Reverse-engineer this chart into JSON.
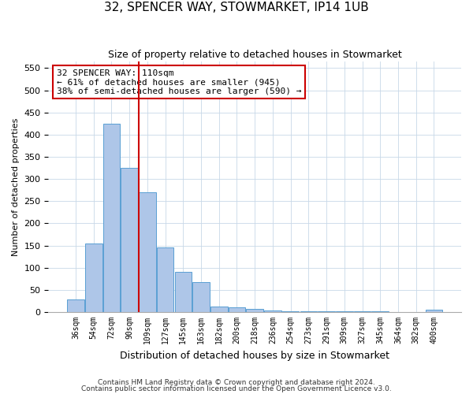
{
  "title": "32, SPENCER WAY, STOWMARKET, IP14 1UB",
  "subtitle": "Size of property relative to detached houses in Stowmarket",
  "xlabel": "Distribution of detached houses by size in Stowmarket",
  "ylabel": "Number of detached properties",
  "categories": [
    "36sqm",
    "54sqm",
    "72sqm",
    "90sqm",
    "109sqm",
    "127sqm",
    "145sqm",
    "163sqm",
    "182sqm",
    "200sqm",
    "218sqm",
    "236sqm",
    "254sqm",
    "273sqm",
    "291sqm",
    "309sqm",
    "327sqm",
    "345sqm",
    "364sqm",
    "382sqm",
    "400sqm"
  ],
  "values": [
    28,
    155,
    425,
    325,
    270,
    145,
    90,
    68,
    13,
    10,
    8,
    4,
    2,
    2,
    1,
    1,
    1,
    1,
    0,
    0,
    5
  ],
  "bar_color": "#aec6e8",
  "bar_edge_color": "#5a9fd4",
  "property_line_index": 4,
  "property_line_color": "#cc0000",
  "annotation_text": "32 SPENCER WAY: 110sqm\n← 61% of detached houses are smaller (945)\n38% of semi-detached houses are larger (590) →",
  "annotation_box_color": "#cc0000",
  "ylim": [
    0,
    565
  ],
  "yticks": [
    0,
    50,
    100,
    150,
    200,
    250,
    300,
    350,
    400,
    450,
    500,
    550
  ],
  "footnote1": "Contains HM Land Registry data © Crown copyright and database right 2024.",
  "footnote2": "Contains public sector information licensed under the Open Government Licence v3.0.",
  "background_color": "#ffffff",
  "grid_color": "#c8d8e8"
}
